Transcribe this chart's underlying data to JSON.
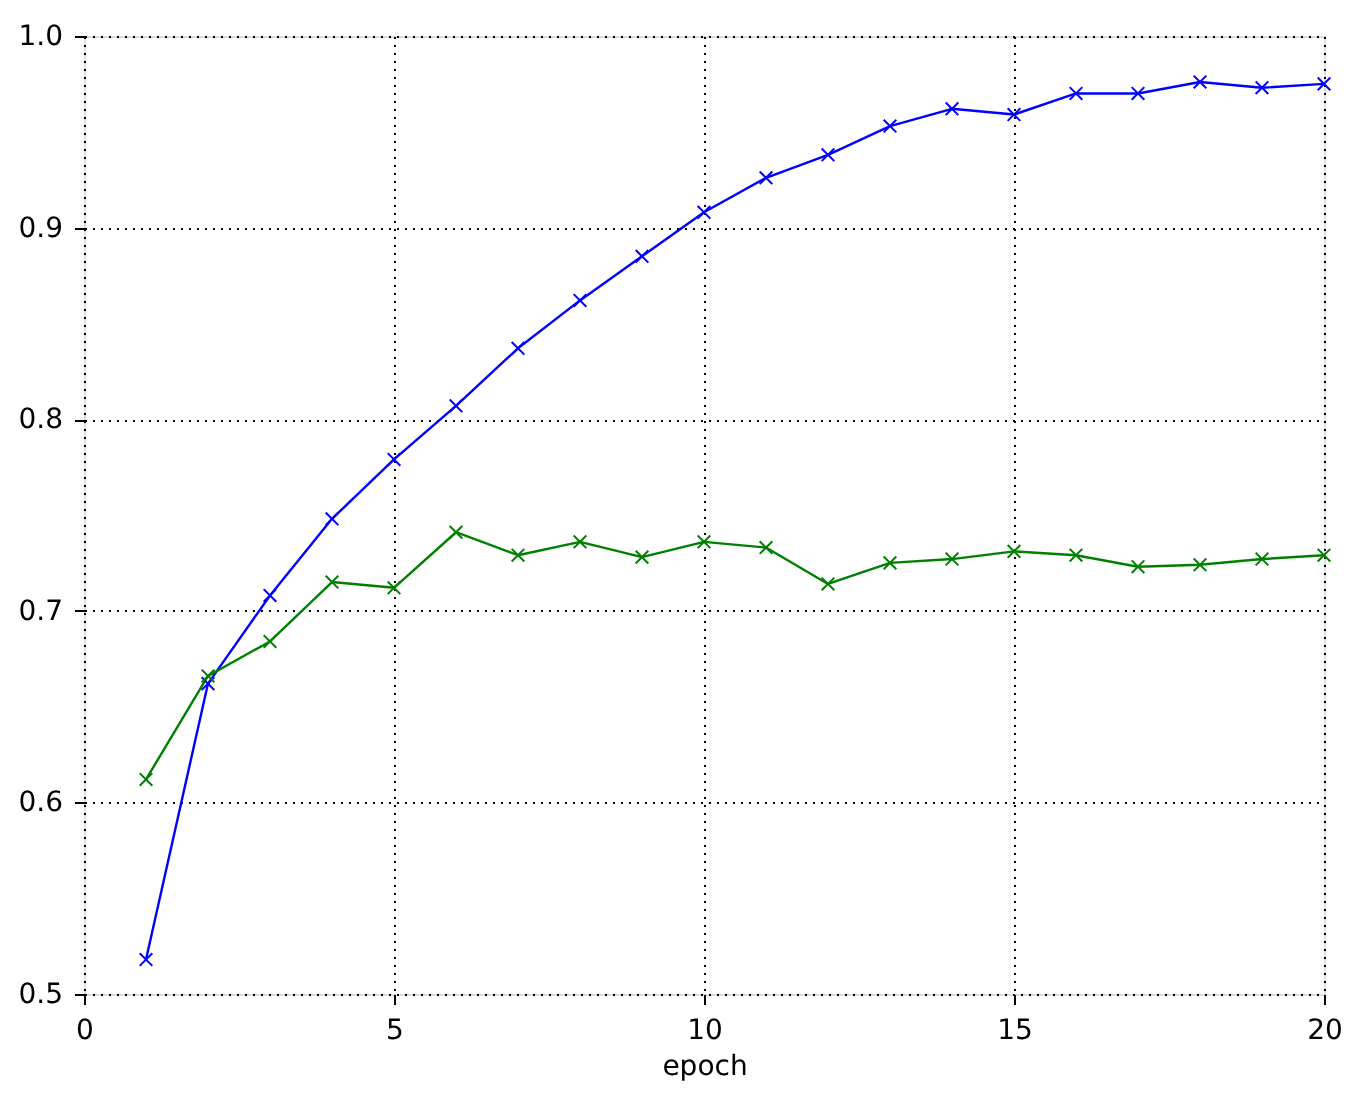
{
  "chart_data": {
    "type": "line",
    "xlabel": "epoch",
    "x": [
      1,
      2,
      3,
      4,
      5,
      6,
      7,
      8,
      9,
      10,
      11,
      12,
      13,
      14,
      15,
      16,
      17,
      18,
      19,
      20
    ],
    "series": [
      {
        "color": "#0000ff",
        "values": [
          0.518,
          0.662,
          0.708,
          0.748,
          0.779,
          0.807,
          0.837,
          0.862,
          0.885,
          0.908,
          0.926,
          0.938,
          0.953,
          0.962,
          0.959,
          0.97,
          0.97,
          0.976,
          0.973,
          0.975
        ]
      },
      {
        "color": "#008000",
        "values": [
          0.612,
          0.666,
          0.684,
          0.715,
          0.712,
          0.741,
          0.729,
          0.736,
          0.728,
          0.736,
          0.733,
          0.714,
          0.725,
          0.727,
          0.731,
          0.729,
          0.723,
          0.724,
          0.727,
          0.729
        ]
      }
    ],
    "xlim": [
      0,
      20
    ],
    "xticks": [
      0,
      5,
      10,
      15,
      20
    ],
    "ylim": [
      0.5,
      1.0
    ],
    "yticks": [
      0.5,
      0.6,
      0.7,
      0.8,
      0.9,
      {
        "value": 1,
        "label": "1.0"
      }
    ],
    "grid": true,
    "marker": "cross",
    "line_style": "solid"
  }
}
